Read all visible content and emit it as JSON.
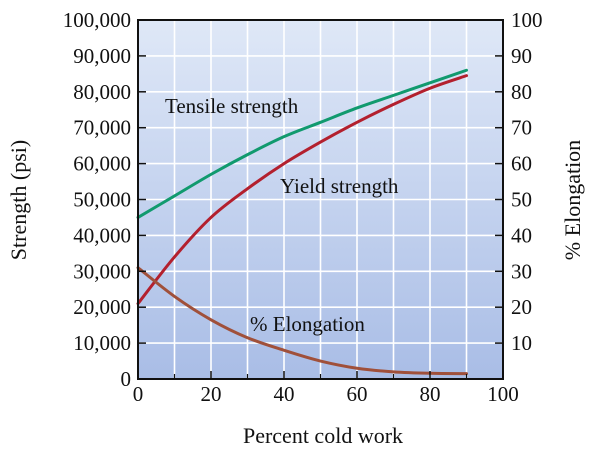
{
  "chart_data": {
    "type": "line",
    "x": [
      0,
      10,
      20,
      30,
      40,
      50,
      60,
      70,
      80,
      90
    ],
    "xlabel": "Percent cold work",
    "xlim": [
      0,
      100
    ],
    "xticks": [
      "0",
      "20",
      "40",
      "60",
      "80",
      "100"
    ],
    "ylabel_left": "Strength (psi)",
    "ylim_left": [
      0,
      100000
    ],
    "yticks_left": [
      "0",
      "10,000",
      "20,000",
      "30,000",
      "40,000",
      "50,000",
      "60,000",
      "70,000",
      "80,000",
      "90,000",
      "100,000"
    ],
    "ylabel_right": "% Elongation",
    "ylim_right": [
      0,
      100
    ],
    "yticks_right": [
      "10",
      "20",
      "30",
      "40",
      "50",
      "60",
      "70",
      "80",
      "90",
      "100"
    ],
    "grid": true,
    "series": [
      {
        "name": "Tensile strength",
        "axis": "left",
        "color": "#119a6e",
        "values": [
          45000,
          51000,
          57000,
          62500,
          67500,
          71500,
          75500,
          79000,
          82500,
          86000
        ]
      },
      {
        "name": "Yield strength",
        "axis": "left",
        "color": "#b3202e",
        "values": [
          21000,
          34000,
          45000,
          53000,
          60000,
          66000,
          71500,
          76500,
          81000,
          84500
        ]
      },
      {
        "name": "% Elongation",
        "axis": "right",
        "color": "#a0503a",
        "values": [
          31,
          23,
          16.5,
          11.5,
          8,
          5,
          3,
          2,
          1.6,
          1.5
        ]
      }
    ]
  }
}
